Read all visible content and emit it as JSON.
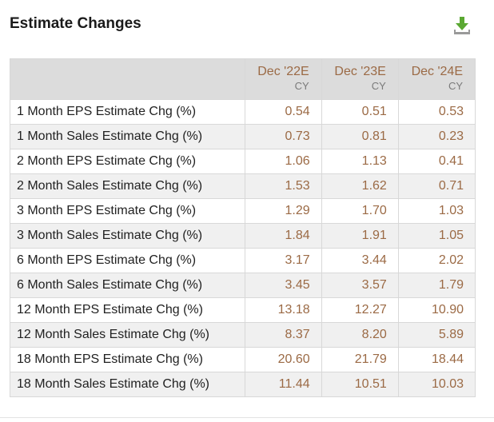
{
  "widget": {
    "title": "Estimate Changes",
    "download_icon": "download-icon",
    "accent_color": "#9b6a45",
    "icon_color": "#5aa832"
  },
  "table": {
    "columns": [
      {
        "period": "Dec '22E",
        "basis": "CY"
      },
      {
        "period": "Dec '23E",
        "basis": "CY"
      },
      {
        "period": "Dec '24E",
        "basis": "CY"
      }
    ],
    "rows": [
      {
        "label": "1 Month EPS Estimate Chg (%)",
        "values": [
          "0.54",
          "0.51",
          "0.53"
        ]
      },
      {
        "label": "1 Month Sales Estimate Chg (%)",
        "values": [
          "0.73",
          "0.81",
          "0.23"
        ]
      },
      {
        "label": "2 Month EPS Estimate Chg (%)",
        "values": [
          "1.06",
          "1.13",
          "0.41"
        ]
      },
      {
        "label": "2 Month Sales Estimate Chg (%)",
        "values": [
          "1.53",
          "1.62",
          "0.71"
        ]
      },
      {
        "label": "3 Month EPS Estimate Chg (%)",
        "values": [
          "1.29",
          "1.70",
          "1.03"
        ]
      },
      {
        "label": "3 Month Sales Estimate Chg (%)",
        "values": [
          "1.84",
          "1.91",
          "1.05"
        ]
      },
      {
        "label": "6 Month EPS Estimate Chg (%)",
        "values": [
          "3.17",
          "3.44",
          "2.02"
        ]
      },
      {
        "label": "6 Month Sales Estimate Chg (%)",
        "values": [
          "3.45",
          "3.57",
          "1.79"
        ]
      },
      {
        "label": "12 Month EPS Estimate Chg (%)",
        "values": [
          "13.18",
          "12.27",
          "10.90"
        ]
      },
      {
        "label": "12 Month Sales Estimate Chg (%)",
        "values": [
          "8.37",
          "8.20",
          "5.89"
        ]
      },
      {
        "label": "18 Month EPS Estimate Chg (%)",
        "values": [
          "20.60",
          "21.79",
          "18.44"
        ]
      },
      {
        "label": "18 Month Sales Estimate Chg (%)",
        "values": [
          "11.44",
          "10.51",
          "10.03"
        ]
      }
    ]
  }
}
